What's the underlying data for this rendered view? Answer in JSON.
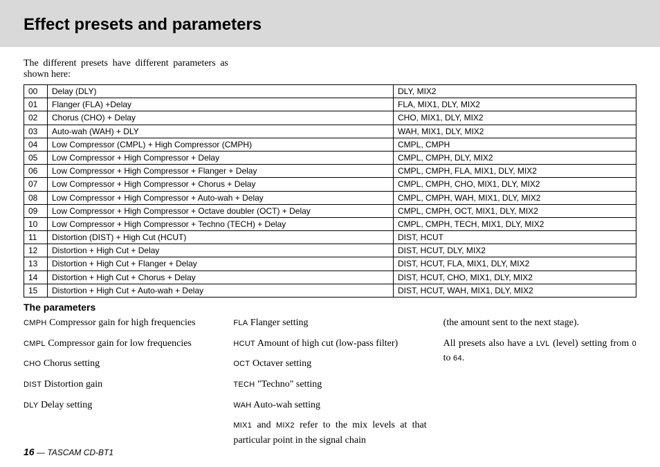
{
  "header": {
    "title": "Effect presets and parameters"
  },
  "intro": "The different presets have different parameters as shown here:",
  "table": {
    "rows": [
      {
        "n": "00",
        "desc": "Delay (DLY)",
        "params": "DLY, MIX2"
      },
      {
        "n": "01",
        "desc": "Flanger (FLA) +Delay",
        "params": "FLA, MIX1, DLY, MIX2"
      },
      {
        "n": "02",
        "desc": "Chorus (CHO) + Delay",
        "params": "CHO, MIX1, DLY, MIX2"
      },
      {
        "n": "03",
        "desc": "Auto-wah (WAH) + DLY",
        "params": "WAH, MIX1, DLY, MIX2"
      },
      {
        "n": "04",
        "desc": "Low Compressor (CMPL) + High Compressor (CMPH)",
        "params": "CMPL, CMPH"
      },
      {
        "n": "05",
        "desc": "Low Compressor + High Compressor + Delay",
        "params": "CMPL, CMPH, DLY, MIX2"
      },
      {
        "n": "06",
        "desc": "Low Compressor + High Compressor + Flanger + Delay",
        "params": "CMPL, CMPH, FLA, MIX1, DLY, MIX2"
      },
      {
        "n": "07",
        "desc": "Low Compressor + High Compressor + Chorus + Delay",
        "params": "CMPL, CMPH, CHO, MIX1, DLY, MIX2"
      },
      {
        "n": "08",
        "desc": "Low Compressor + High Compressor + Auto-wah + Delay",
        "params": "CMPL, CMPH, WAH, MIX1, DLY, MIX2"
      },
      {
        "n": "09",
        "desc": "Low Compressor + High Compressor + Octave doubler (OCT) + Delay",
        "params": "CMPL, CMPH, OCT, MIX1, DLY, MIX2"
      },
      {
        "n": "10",
        "desc": "Low Compressor + High Compressor +  Techno  (TECH) + Delay",
        "params": "CMPL, CMPH, TECH, MIX1, DLY, MIX2"
      },
      {
        "n": "11",
        "desc": "Distortion (DIST) + High Cut (HCUT)",
        "params": "DIST, HCUT"
      },
      {
        "n": "12",
        "desc": "Distortion + High Cut + Delay",
        "params": "DIST, HCUT, DLY, MIX2"
      },
      {
        "n": "13",
        "desc": "Distortion + High Cut + Flanger + Delay",
        "params": "DIST, HCUT, FLA, MIX1, DLY, MIX2"
      },
      {
        "n": "14",
        "desc": "Distortion + High Cut + Chorus + Delay",
        "params": "DIST, HCUT, CHO, MIX1, DLY, MIX2"
      },
      {
        "n": "15",
        "desc": "Distortion + High Cut + Auto-wah + Delay",
        "params": "DIST, HCUT, WAH, MIX1, DLY, MIX2"
      }
    ]
  },
  "params_heading": "The parameters",
  "defs": {
    "cmph_code": "CMPH",
    "cmph_txt": " Compressor gain for high frequencies",
    "cmpl_code": "CMPL",
    "cmpl_txt": " Compressor gain for low frequencies",
    "cho_code": "CHO",
    "cho_txt": " Chorus setting",
    "dist_code": "DIST",
    "dist_txt": " Distortion gain",
    "dly_code": "DLY",
    "dly_txt": " Delay setting",
    "fla_code": "FLA",
    "fla_txt": " Flanger setting",
    "hcut_code": "HCUT",
    "hcut_txt": " Amount of high cut (low-pass filter)",
    "oct_code": "OCT",
    "oct_txt": " Octaver setting",
    "tech_code": "TECH",
    "tech_txt": " \"Techno\" setting",
    "wah_code": "WAH",
    "wah_txt": " Auto-wah setting",
    "mix1_code": "MIX1",
    "mix_and": " and ",
    "mix2_code": "MIX2",
    "mix_txt": " refer to the mix levels at that particular point in the signal chain",
    "sent_txt": "(the amount sent to the next stage).",
    "lvl_pre": "All presets also have a ",
    "lvl_code": "LVL",
    "lvl_mid": " (level) setting from ",
    "lvl_zero": "0",
    "lvl_to": " to ",
    "lvl_max": "64",
    "lvl_dot": "."
  },
  "footer": {
    "page": "16",
    "sep": " — ",
    "model": "TASCAM CD-BT1"
  }
}
